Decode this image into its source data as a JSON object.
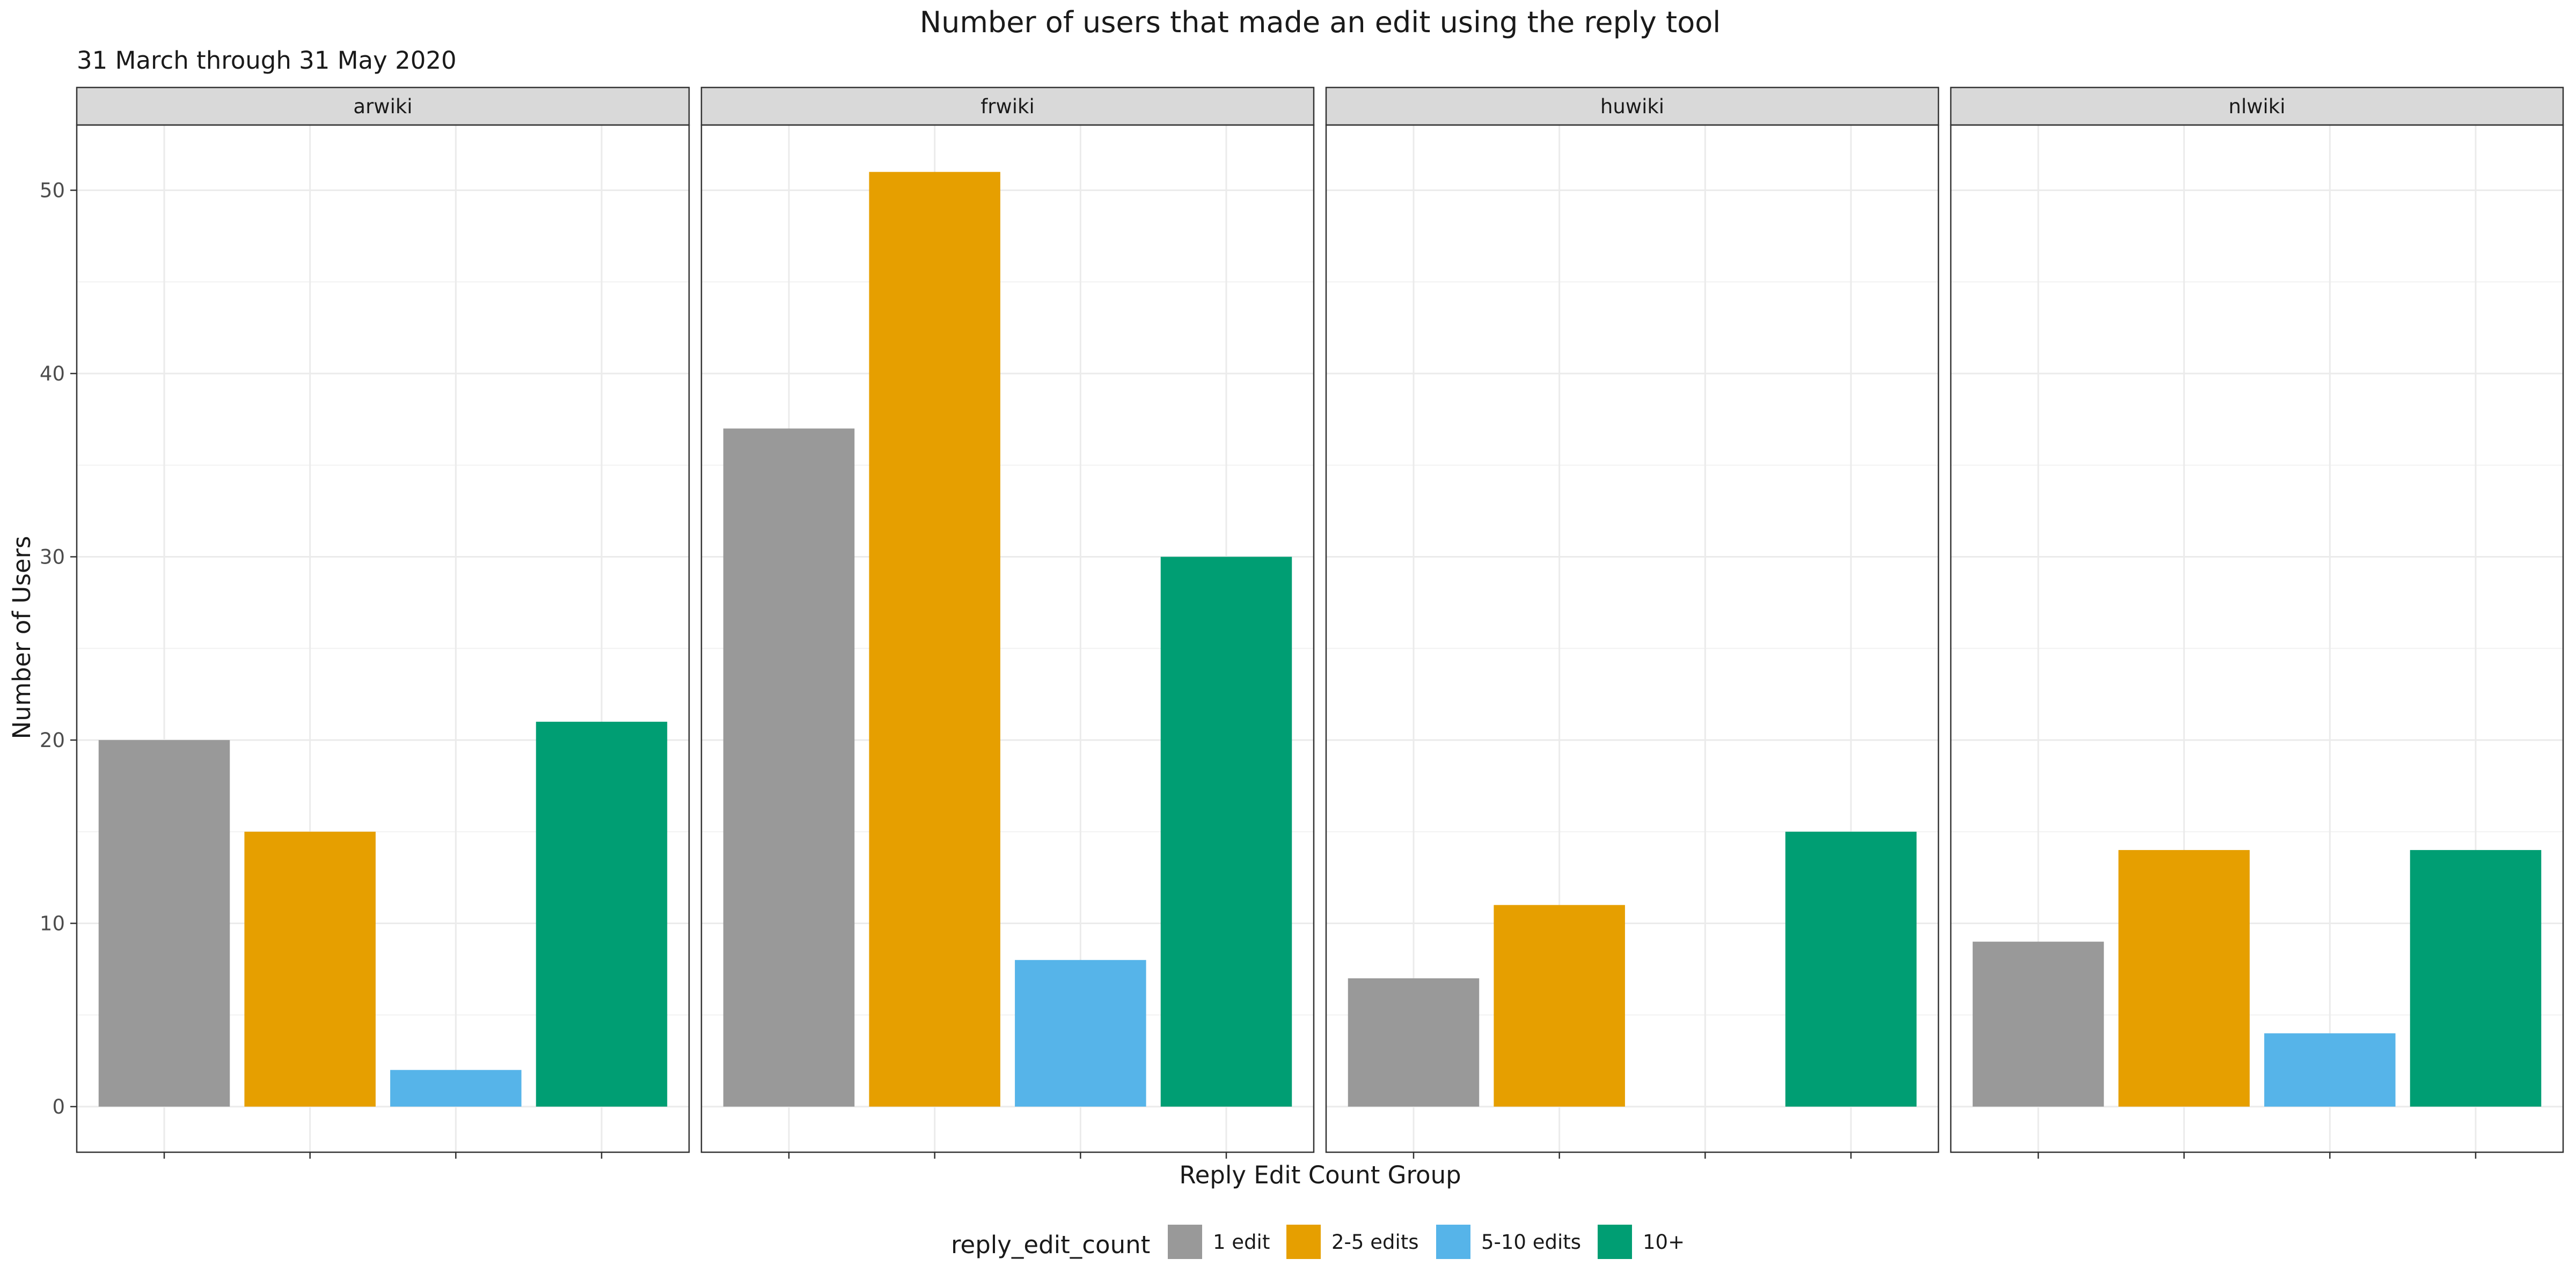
{
  "chart_data": {
    "type": "bar",
    "title": "Number of users that made an edit using the reply tool",
    "subtitle": "31 March through 31 May 2020",
    "xlabel": "Reply Edit Count Group",
    "ylabel": "Number of Users",
    "ylim": [
      0,
      55
    ],
    "yticks": [
      0,
      10,
      20,
      30,
      40,
      50
    ],
    "grid": true,
    "legend": {
      "title": "reply_edit_count",
      "placement": "bottom",
      "entries": [
        {
          "label": "1 edit",
          "color": "#999999"
        },
        {
          "label": "2-5 edits",
          "color": "#E69F00"
        },
        {
          "label": "5-10 edits",
          "color": "#56B4E9"
        },
        {
          "label": "10+",
          "color": "#009E73"
        }
      ]
    },
    "categories": [
      "1 edit",
      "2-5 edits",
      "5-10 edits",
      "10+"
    ],
    "facets": [
      {
        "name": "arwiki",
        "values": [
          20,
          15,
          2,
          21
        ]
      },
      {
        "name": "frwiki",
        "values": [
          37,
          51,
          8,
          30
        ]
      },
      {
        "name": "huwiki",
        "values": [
          7,
          11,
          0,
          15
        ]
      },
      {
        "name": "nlwiki",
        "values": [
          9,
          14,
          4,
          14
        ]
      }
    ]
  }
}
